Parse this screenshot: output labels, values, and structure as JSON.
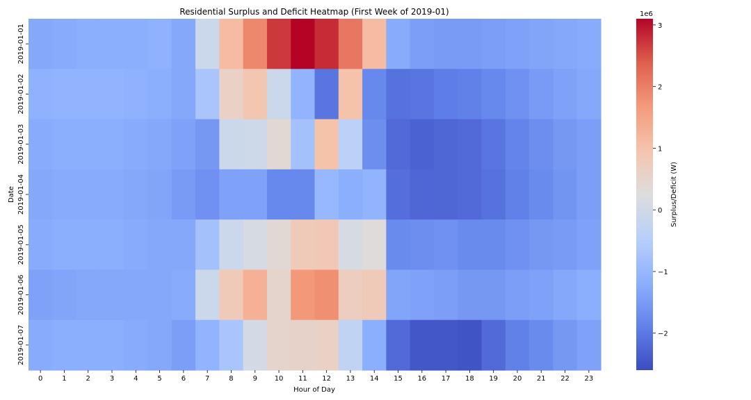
{
  "chart_data": {
    "type": "heatmap",
    "title": "Residential Surplus and Deficit Heatmap (First Week of 2019-01)",
    "xlabel": "Hour of Day",
    "ylabel": "Date",
    "x": [
      "0",
      "1",
      "2",
      "3",
      "4",
      "5",
      "6",
      "7",
      "8",
      "9",
      "10",
      "11",
      "12",
      "13",
      "14",
      "15",
      "16",
      "17",
      "18",
      "19",
      "20",
      "21",
      "22",
      "23"
    ],
    "y": [
      "2019-01-01",
      "2019-01-02",
      "2019-01-03",
      "2019-01-04",
      "2019-01-05",
      "2019-01-06",
      "2019-01-07"
    ],
    "values": [
      [
        -1.3,
        -1.25,
        -1.2,
        -1.2,
        -1.2,
        -1.15,
        -1.3,
        -0.1,
        1.1,
        1.9,
        2.7,
        3.1,
        2.8,
        2.1,
        1.1,
        -1.25,
        -1.45,
        -1.5,
        -1.5,
        -1.45,
        -1.4,
        -1.35,
        -1.3,
        -1.25
      ],
      [
        -1.15,
        -1.1,
        -1.1,
        -1.1,
        -1.15,
        -1.2,
        -1.3,
        -0.7,
        0.6,
        0.9,
        -0.1,
        -1.1,
        -2.05,
        1.0,
        -1.8,
        -2.1,
        -2.05,
        -1.95,
        -1.9,
        -1.8,
        -1.65,
        -1.5,
        -1.4,
        -1.3
      ],
      [
        -1.25,
        -1.2,
        -1.2,
        -1.2,
        -1.25,
        -1.3,
        -1.4,
        -1.55,
        -0.1,
        -0.05,
        0.4,
        -0.8,
        1.0,
        -0.4,
        -1.7,
        -2.2,
        -2.3,
        -2.25,
        -2.2,
        -2.05,
        -1.85,
        -1.7,
        -1.55,
        -1.45
      ],
      [
        -1.3,
        -1.25,
        -1.25,
        -1.25,
        -1.3,
        -1.35,
        -1.5,
        -1.65,
        -1.4,
        -1.4,
        -1.8,
        -1.8,
        -1.0,
        -1.2,
        -1.1,
        -2.15,
        -2.25,
        -2.25,
        -2.2,
        -2.1,
        -1.9,
        -1.75,
        -1.6,
        -1.45
      ],
      [
        -1.25,
        -1.2,
        -1.2,
        -1.2,
        -1.25,
        -1.3,
        -1.3,
        -0.8,
        -0.1,
        0.1,
        0.4,
        0.8,
        0.85,
        0.1,
        0.3,
        -1.75,
        -1.7,
        -1.65,
        -1.75,
        -1.75,
        -1.65,
        -1.55,
        -1.5,
        -1.4
      ],
      [
        -1.4,
        -1.35,
        -1.3,
        -1.3,
        -1.3,
        -1.3,
        -1.25,
        -0.1,
        0.8,
        1.3,
        0.5,
        1.7,
        1.8,
        0.7,
        0.8,
        -1.35,
        -1.4,
        -1.45,
        -1.55,
        -1.55,
        -1.45,
        -1.4,
        -1.3,
        -1.2
      ],
      [
        -1.25,
        -1.2,
        -1.2,
        -1.2,
        -1.25,
        -1.3,
        -1.45,
        -1.1,
        -0.7,
        0.05,
        0.5,
        0.55,
        0.6,
        -0.3,
        -1.2,
        -2.2,
        -2.45,
        -2.45,
        -2.5,
        -2.2,
        -1.9,
        -1.75,
        -1.55,
        -1.4
      ]
    ],
    "value_unit": "W",
    "vmin": -2.6,
    "vmax": 3.1,
    "scale_note": "1e6",
    "colormap": "coolwarm",
    "colorbar": {
      "label": "Surplus/Deficit (W)",
      "offset_label": "1e6",
      "ticks": [
        -2,
        -1,
        0,
        1,
        2,
        3
      ],
      "tick_labels": [
        "−2",
        "−1",
        "0",
        "1",
        "2",
        "3"
      ]
    },
    "grid": false,
    "legend": "colorbar-right"
  }
}
